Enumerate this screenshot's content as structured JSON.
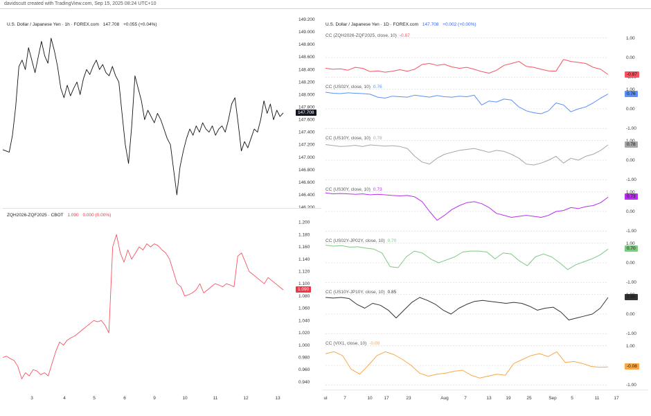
{
  "credit": "davidscutt created with TradingView.com, Sep 15, 2025 08:24 UTC+10",
  "left_top": {
    "title": "U.S. Dollar / Japanese Yen · 1h · FOREX.com",
    "last": "147.708",
    "change": "+0.055 (+0.04%)",
    "tag": "147.708",
    "tag_color": "#131722"
  },
  "left_bottom": {
    "title": "ZQH2026-ZQF2025 · CBOT",
    "last": "1.090",
    "change": "0.000 (0.00%)",
    "tag": "1.090",
    "tag_color": "#f23645"
  },
  "left_x_ticks": [
    "3",
    "4",
    "5",
    "6",
    "9",
    "10",
    "11",
    "12",
    "13"
  ],
  "right_header": {
    "title": "U.S. Dollar / Japanese Yen · 1D · FOREX.com",
    "last": "147.708",
    "change": "+0.002 (+0.00%)"
  },
  "right_x_ticks": [
    "ul",
    "7",
    "10",
    "17",
    "23",
    "Aug",
    "7",
    "13",
    "19",
    "25",
    "Sep",
    "5",
    "11",
    "17"
  ],
  "colors": {
    "black_line": "#111111",
    "red_line": "#f7525f",
    "blue": "#5b8ff9",
    "gray": "#a6a6a6",
    "purple": "#b82ef0",
    "green": "#81c784",
    "dark": "#333333",
    "orange": "#f8a84a"
  },
  "chart_data": [
    {
      "type": "line",
      "title": "U.S. Dollar / Japanese Yen · 1h · FOREX.com",
      "ylim": [
        146.3,
        149.2
      ],
      "yticks": [
        "149.200",
        "149.000",
        "148.800",
        "148.600",
        "148.400",
        "148.200",
        "148.000",
        "147.800",
        "147.600",
        "147.400",
        "147.200",
        "147.000",
        "146.800",
        "146.600",
        "146.400",
        "146.200"
      ],
      "x_ticks": [
        "3",
        "4",
        "5",
        "6",
        "9",
        "10",
        "11",
        "12",
        "13"
      ],
      "values": [
        147.12,
        147.1,
        147.08,
        147.35,
        147.8,
        148.45,
        148.55,
        148.4,
        148.75,
        148.55,
        148.35,
        148.6,
        148.85,
        148.62,
        148.5,
        148.9,
        148.7,
        148.45,
        148.1,
        147.95,
        148.15,
        147.98,
        148.1,
        148.2,
        148.0,
        148.25,
        148.4,
        148.32,
        148.45,
        148.55,
        148.4,
        148.48,
        148.35,
        148.3,
        148.45,
        148.3,
        148.2,
        147.7,
        147.2,
        146.9,
        147.5,
        148.3,
        148.1,
        147.9,
        147.6,
        147.75,
        147.65,
        147.55,
        147.7,
        147.6,
        147.45,
        147.3,
        147.2,
        146.8,
        146.4,
        146.85,
        147.1,
        147.3,
        147.45,
        147.35,
        147.5,
        147.4,
        147.55,
        147.45,
        147.4,
        147.5,
        147.35,
        147.45,
        147.5,
        147.4,
        147.6,
        147.85,
        147.95,
        147.55,
        147.1,
        147.25,
        147.15,
        147.3,
        147.45,
        147.4,
        147.6,
        147.9,
        147.7,
        147.85,
        147.6,
        147.75,
        147.65,
        147.708
      ],
      "last_value_label": "147.708"
    },
    {
      "type": "line",
      "title": "ZQH2026-ZQF2025 · CBOT",
      "ylim": [
        0.932,
        1.212
      ],
      "yticks": [
        "1.200",
        "1.180",
        "1.160",
        "1.140",
        "1.120",
        "1.100",
        "1.080",
        "1.060",
        "1.040",
        "1.020",
        "1.000",
        "0.980",
        "0.960",
        "0.940"
      ],
      "x_ticks": [
        "3",
        "4",
        "5",
        "6",
        "9",
        "10",
        "11",
        "12",
        "13"
      ],
      "values": [
        0.98,
        0.982,
        0.978,
        0.975,
        0.965,
        0.945,
        0.955,
        0.95,
        0.96,
        0.958,
        0.952,
        0.955,
        0.95,
        0.97,
        0.99,
        1.005,
        1.0,
        1.008,
        1.012,
        1.015,
        1.02,
        1.025,
        1.03,
        1.035,
        1.04,
        1.038,
        1.04,
        1.032,
        1.02,
        1.16,
        1.18,
        1.15,
        1.135,
        1.155,
        1.14,
        1.15,
        1.16,
        1.155,
        1.165,
        1.16,
        1.165,
        1.162,
        1.155,
        1.15,
        1.14,
        1.12,
        1.1,
        1.095,
        1.08,
        1.082,
        1.085,
        1.09,
        1.1,
        1.085,
        1.09,
        1.095,
        1.1,
        1.098,
        1.095,
        1.1,
        1.098,
        1.095,
        1.145,
        1.15,
        1.135,
        1.12,
        1.115,
        1.11,
        1.105,
        1.1,
        1.11,
        1.105,
        1.1,
        1.095,
        1.09
      ],
      "last_value_label": "1.090"
    },
    {
      "type": "line",
      "title": "CC (ZQH2026-ZQF2025, close, 10)",
      "legend_value": "-0.87",
      "ylim": [
        -1.1,
        1.1
      ],
      "yticks": [
        "1.00",
        "0.00",
        "-1.00"
      ],
      "color": "#f7525f",
      "values": [
        -0.55,
        -0.6,
        -0.58,
        -0.65,
        -0.5,
        -0.55,
        -0.72,
        -0.68,
        -0.75,
        -0.7,
        -0.62,
        -0.7,
        -0.6,
        -0.35,
        -0.3,
        -0.4,
        -0.35,
        -0.48,
        -0.55,
        -0.5,
        -0.6,
        -0.72,
        -0.8,
        -0.65,
        -0.4,
        -0.3,
        -0.2,
        -0.45,
        -0.5,
        -0.6,
        -0.68,
        -0.7,
        -0.1,
        -0.2,
        -0.25,
        -0.3,
        -0.5,
        -0.6,
        -0.87
      ],
      "last_value_label": "-0.87"
    },
    {
      "type": "line",
      "title": "CC (US02Y, close, 10)",
      "legend_value": "0.76",
      "ylim": [
        -1.1,
        1.1
      ],
      "yticks": [
        "1.00",
        "0.00",
        "-1.00"
      ],
      "color": "#5b8ff9",
      "values": [
        0.85,
        0.8,
        0.78,
        0.82,
        0.8,
        0.78,
        0.75,
        0.6,
        0.55,
        0.65,
        0.62,
        0.6,
        0.7,
        0.65,
        0.6,
        0.68,
        0.62,
        0.6,
        0.65,
        0.62,
        0.7,
        0.2,
        0.4,
        0.35,
        0.5,
        0.45,
        0.1,
        -0.1,
        -0.2,
        -0.25,
        -0.1,
        0.3,
        0.2,
        -0.15,
        0.0,
        0.1,
        0.3,
        0.55,
        0.76
      ],
      "last_value_label": "0.76"
    },
    {
      "type": "line",
      "title": "CC (US10Y, close, 10)",
      "legend_value": "0.78",
      "ylim": [
        -1.1,
        1.1
      ],
      "yticks": [
        "1.00",
        "0.00",
        "-1.00"
      ],
      "color": "#a6a6a6",
      "values": [
        0.8,
        0.75,
        0.7,
        0.72,
        0.76,
        0.7,
        0.78,
        0.75,
        0.72,
        0.74,
        0.7,
        0.6,
        0.2,
        -0.1,
        -0.2,
        0.1,
        0.3,
        0.4,
        0.5,
        0.55,
        0.6,
        0.5,
        0.4,
        0.5,
        0.45,
        0.3,
        0.1,
        -0.2,
        -0.25,
        -0.15,
        0.0,
        0.2,
        -0.15,
        0.1,
        0.0,
        0.2,
        0.3,
        0.5,
        0.78
      ],
      "last_value_label": "0.78"
    },
    {
      "type": "line",
      "title": "CC (US30Y, close, 10)",
      "legend_value": "0.73",
      "ylim": [
        -1.1,
        1.1
      ],
      "yticks": [
        "1.00",
        "0.00",
        "-1.00"
      ],
      "color": "#b82ef0",
      "values": [
        0.95,
        0.9,
        0.92,
        0.9,
        0.88,
        0.9,
        0.85,
        0.88,
        0.85,
        0.82,
        0.8,
        0.82,
        0.75,
        0.5,
        0.0,
        -0.45,
        -0.2,
        0.1,
        0.3,
        0.45,
        0.5,
        0.4,
        0.2,
        -0.1,
        -0.2,
        -0.3,
        -0.25,
        -0.2,
        -0.25,
        -0.3,
        -0.2,
        0.0,
        0.05,
        0.2,
        0.15,
        0.25,
        0.3,
        0.45,
        0.73
      ],
      "last_value_label": "0.73"
    },
    {
      "type": "line",
      "title": "CC (US02Y-JP02Y, close, 10)",
      "legend_value": "0.70",
      "ylim": [
        -1.1,
        1.1
      ],
      "yticks": [
        "1.00",
        "0.00",
        "-1.00"
      ],
      "color": "#81c784",
      "values": [
        0.9,
        0.85,
        0.88,
        0.8,
        0.82,
        0.75,
        0.7,
        0.5,
        -0.2,
        -0.25,
        0.3,
        0.6,
        0.5,
        0.2,
        0.0,
        0.15,
        0.3,
        0.55,
        0.6,
        0.6,
        0.55,
        0.2,
        0.5,
        0.45,
        0.1,
        -0.15,
        0.3,
        0.45,
        0.3,
        0.0,
        -0.35,
        -0.1,
        0.05,
        0.2,
        0.4,
        0.7
      ],
      "last_value_label": "0.70"
    },
    {
      "type": "line",
      "title": "CC (US10Y-JP10Y, close, 10)",
      "legend_value": "0.85",
      "ylim": [
        -1.1,
        1.1
      ],
      "yticks": [
        "1.00",
        "0.00",
        "-1.00"
      ],
      "color": "#333333",
      "values": [
        0.85,
        0.82,
        0.85,
        0.8,
        0.5,
        0.3,
        0.55,
        0.45,
        0.2,
        -0.2,
        0.2,
        0.6,
        0.85,
        0.7,
        0.5,
        0.2,
        0.0,
        0.3,
        0.5,
        0.65,
        0.7,
        0.65,
        0.6,
        0.55,
        0.6,
        0.55,
        0.4,
        0.2,
        0.3,
        0.35,
        0.1,
        -0.3,
        -0.2,
        -0.1,
        0.0,
        0.3,
        0.85
      ],
      "last_value_label": "0.85"
    },
    {
      "type": "line",
      "title": "CC (VIX1, close, 10)",
      "legend_value": "-0.08",
      "ylim": [
        -1.1,
        1.1
      ],
      "yticks": [
        "1.00",
        "0.00",
        "-1.00"
      ],
      "color": "#f8a84a",
      "values": [
        0.6,
        0.7,
        0.5,
        -0.2,
        -0.45,
        0.0,
        0.5,
        0.7,
        0.55,
        0.3,
        0.0,
        -0.4,
        -0.55,
        -0.45,
        -0.4,
        -0.3,
        -0.25,
        -0.5,
        -0.65,
        -0.55,
        -0.45,
        -0.5,
        0.1,
        0.3,
        0.5,
        0.6,
        0.45,
        0.7,
        0.15,
        0.2,
        0.1,
        -0.05,
        -0.1,
        -0.08
      ],
      "last_value_label": "-0.08"
    }
  ]
}
